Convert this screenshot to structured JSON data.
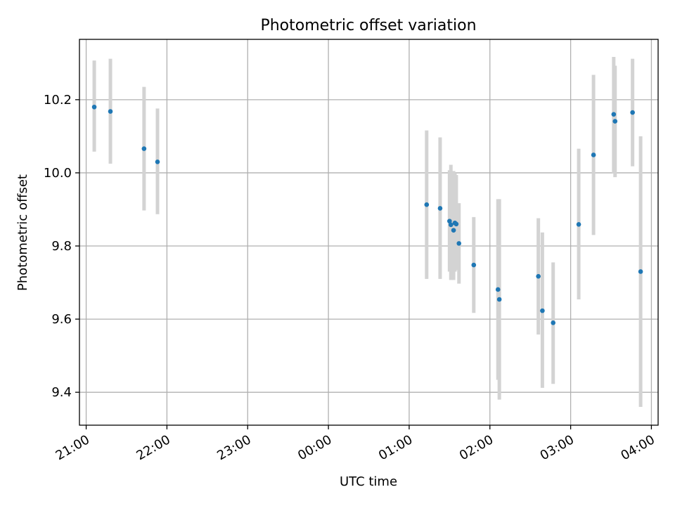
{
  "chart_data": {
    "type": "scatter",
    "title": "Photometric offset variation",
    "xlabel": "UTC time",
    "ylabel": "Photometric offset",
    "grid": true,
    "x_tick_labels": [
      "21:00",
      "22:00",
      "23:00",
      "00:00",
      "01:00",
      "02:00",
      "03:00",
      "04:00"
    ],
    "y_tick_labels": [
      "9.4",
      "9.6",
      "9.8",
      "10.0",
      "10.2"
    ],
    "y_ticks": [
      9.4,
      9.6,
      9.8,
      10.0,
      10.2
    ],
    "xlim": [
      "20:55",
      "04:05"
    ],
    "ylim": [
      9.31,
      10.365
    ],
    "point_color": "#1f77b4",
    "errorbar_color": "#d3d3d3",
    "points": [
      {
        "t": "21:06",
        "y": 10.18,
        "ylo": 10.058,
        "yhi": 10.307
      },
      {
        "t": "21:18",
        "y": 10.168,
        "ylo": 10.025,
        "yhi": 10.312
      },
      {
        "t": "21:43",
        "y": 10.066,
        "ylo": 9.897,
        "yhi": 10.235
      },
      {
        "t": "21:53",
        "y": 10.03,
        "ylo": 9.887,
        "yhi": 10.176
      },
      {
        "t": "01:13",
        "y": 9.913,
        "ylo": 9.71,
        "yhi": 10.116
      },
      {
        "t": "01:23",
        "y": 9.903,
        "ylo": 9.71,
        "yhi": 10.097
      },
      {
        "t": "01:30",
        "y": 9.868,
        "ylo": 9.73,
        "yhi": 10.007
      },
      {
        "t": "01:31",
        "y": 9.858,
        "ylo": 9.707,
        "yhi": 10.022
      },
      {
        "t": "01:33",
        "y": 9.843,
        "ylo": 9.707,
        "yhi": 10.005
      },
      {
        "t": "01:34",
        "y": 9.863,
        "ylo": 9.73,
        "yhi": 9.998
      },
      {
        "t": "01:35",
        "y": 9.86,
        "ylo": 9.734,
        "yhi": 9.994
      },
      {
        "t": "01:37",
        "y": 9.807,
        "ylo": 9.697,
        "yhi": 9.917
      },
      {
        "t": "01:48",
        "y": 9.748,
        "ylo": 9.617,
        "yhi": 9.879
      },
      {
        "t": "02:06",
        "y": 9.681,
        "ylo": 9.434,
        "yhi": 9.928
      },
      {
        "t": "02:07",
        "y": 9.654,
        "ylo": 9.38,
        "yhi": 9.928
      },
      {
        "t": "02:36",
        "y": 9.717,
        "ylo": 9.558,
        "yhi": 9.876
      },
      {
        "t": "02:39",
        "y": 9.623,
        "ylo": 9.412,
        "yhi": 9.837
      },
      {
        "t": "02:47",
        "y": 9.59,
        "ylo": 9.423,
        "yhi": 9.755
      },
      {
        "t": "03:06",
        "y": 9.859,
        "ylo": 9.654,
        "yhi": 10.066
      },
      {
        "t": "03:17",
        "y": 10.049,
        "ylo": 9.83,
        "yhi": 10.268
      },
      {
        "t": "03:32",
        "y": 10.16,
        "ylo": 9.998,
        "yhi": 10.317
      },
      {
        "t": "03:33",
        "y": 10.141,
        "ylo": 9.988,
        "yhi": 10.293
      },
      {
        "t": "03:46",
        "y": 10.165,
        "ylo": 10.018,
        "yhi": 10.312
      },
      {
        "t": "03:52",
        "y": 9.73,
        "ylo": 9.36,
        "yhi": 10.1
      }
    ]
  }
}
